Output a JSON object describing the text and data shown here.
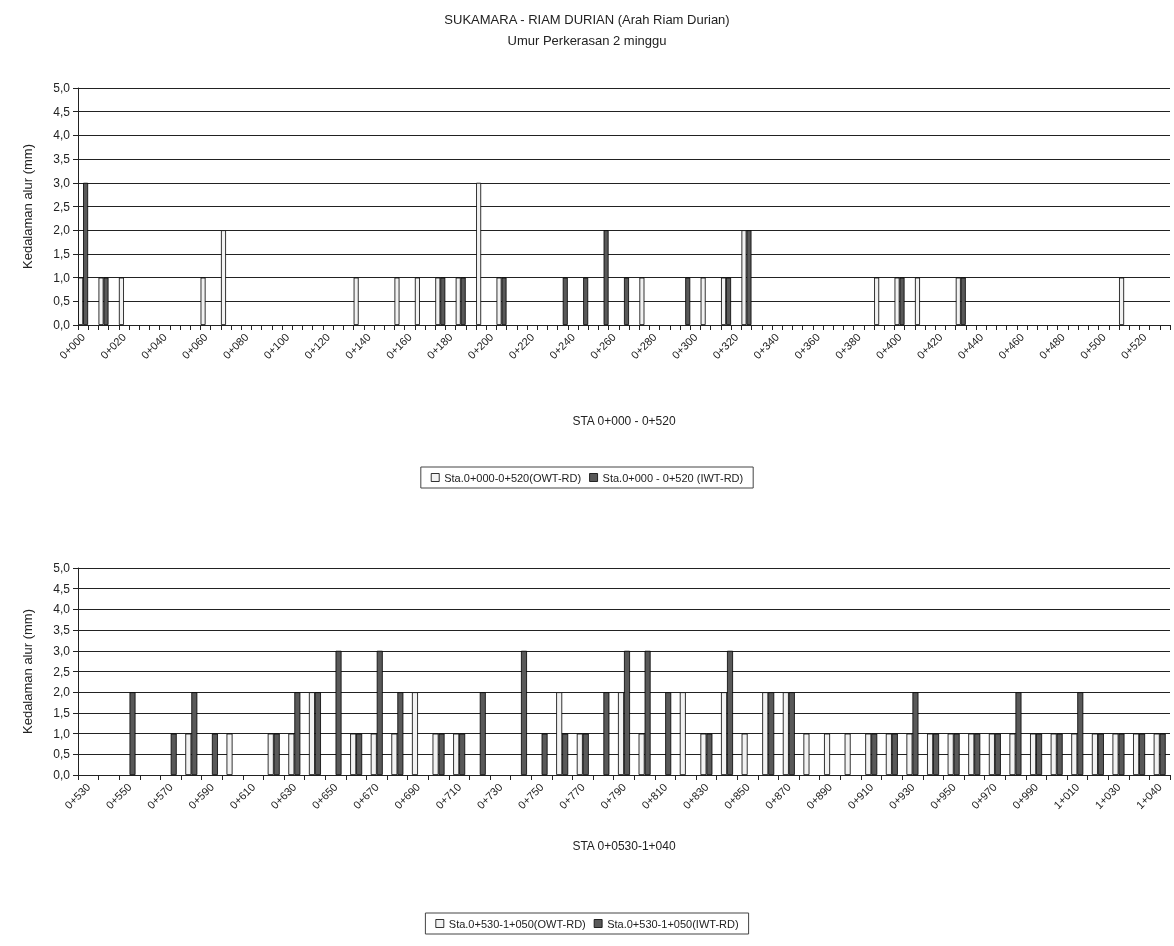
{
  "chart_data": [
    {
      "type": "bar",
      "title": "SUKAMARA - RIAM DURIAN (Arah Riam Durian)",
      "subtitle": "Umur Perkerasan 2 minggu",
      "xlabel": "STA 0+000 - 0+520",
      "ylabel": "Kedalaman alur (mm)",
      "categories": [
        "0+000",
        null,
        null,
        null,
        "0+020",
        null,
        null,
        null,
        "0+040",
        null,
        null,
        null,
        "0+060",
        null,
        null,
        null,
        "0+080",
        null,
        null,
        null,
        "0+100",
        null,
        null,
        null,
        "0+120",
        null,
        null,
        null,
        "0+140",
        null,
        null,
        null,
        "0+160",
        null,
        null,
        null,
        "0+180",
        null,
        null,
        null,
        "0+200",
        null,
        null,
        null,
        "0+220",
        null,
        null,
        null,
        "0+240",
        null,
        null,
        null,
        "0+260",
        null,
        null,
        null,
        "0+280",
        null,
        null,
        null,
        "0+300",
        null,
        null,
        null,
        "0+320",
        null,
        null,
        null,
        "0+340",
        null,
        null,
        null,
        "0+360",
        null,
        null,
        null,
        "0+380",
        null,
        null,
        null,
        "0+400",
        null,
        null,
        null,
        "0+420",
        null,
        null,
        null,
        "0+440",
        null,
        null,
        null,
        "0+460",
        null,
        null,
        null,
        "0+480",
        null,
        null,
        null,
        "0+500",
        null,
        null,
        null,
        "0+520",
        null,
        null
      ],
      "series": [
        {
          "name": "Sta.0+000-0+520(OWT-RD)",
          "color": "#f2f2f2",
          "values": [
            1,
            null,
            1,
            null,
            1,
            null,
            null,
            null,
            null,
            null,
            null,
            null,
            1,
            null,
            2,
            null,
            null,
            null,
            null,
            null,
            null,
            null,
            null,
            null,
            null,
            null,
            null,
            1,
            null,
            null,
            null,
            1,
            null,
            1,
            null,
            1,
            null,
            1,
            null,
            3,
            null,
            1,
            null,
            null,
            null,
            null,
            null,
            null,
            null,
            null,
            null,
            null,
            null,
            null,
            null,
            1,
            null,
            null,
            null,
            null,
            null,
            1,
            null,
            1,
            null,
            2,
            null,
            null,
            null,
            null,
            null,
            null,
            null,
            null,
            null,
            null,
            null,
            null,
            1,
            null,
            1,
            null,
            1,
            null,
            null,
            null,
            1,
            null,
            null,
            null,
            null,
            null,
            null,
            null,
            null,
            null,
            null,
            null,
            null,
            null,
            null,
            null,
            1,
            null,
            null,
            null,
            null
          ]
        },
        {
          "name": "Sta.0+000 - 0+520 (IWT-RD)",
          "color": "#595959",
          "values": [
            3,
            null,
            1,
            null,
            null,
            null,
            null,
            null,
            null,
            null,
            null,
            null,
            null,
            null,
            null,
            null,
            null,
            null,
            null,
            null,
            null,
            null,
            null,
            null,
            null,
            null,
            null,
            null,
            null,
            null,
            null,
            null,
            null,
            null,
            null,
            1,
            null,
            1,
            null,
            null,
            null,
            1,
            null,
            null,
            null,
            null,
            null,
            1,
            null,
            1,
            null,
            2,
            null,
            1,
            null,
            null,
            null,
            null,
            null,
            1,
            null,
            null,
            null,
            1,
            null,
            2,
            null,
            null,
            null,
            null,
            null,
            null,
            null,
            null,
            null,
            null,
            null,
            null,
            null,
            null,
            1,
            null,
            null,
            null,
            null,
            null,
            1,
            null,
            null,
            null,
            null,
            null,
            null,
            null,
            null,
            null,
            null,
            null,
            null,
            null,
            null,
            null,
            null,
            null,
            null,
            null,
            null
          ]
        }
      ],
      "ylim": [
        0,
        5
      ],
      "yticks": [
        {
          "value": 0,
          "label": "0,0"
        },
        {
          "value": 0.5,
          "label": "0,5"
        },
        {
          "value": 1,
          "label": "1,0"
        },
        {
          "value": 1.5,
          "label": "1,5"
        },
        {
          "value": 2,
          "label": "2,0"
        },
        {
          "value": 2.5,
          "label": "2,5"
        },
        {
          "value": 3,
          "label": "3,0"
        },
        {
          "value": 3.5,
          "label": "3,5"
        },
        {
          "value": 4,
          "label": "4,0"
        },
        {
          "value": 4.5,
          "label": "4,5"
        },
        {
          "value": 5,
          "label": "5,0"
        }
      ],
      "grid": "y",
      "legend": "bottom"
    },
    {
      "type": "bar",
      "xlabel": "STA 0+0530-1+040",
      "ylabel": "Kedalaman alur (mm)",
      "categories": [
        "0+530",
        null,
        "0+550",
        null,
        "0+570",
        null,
        "0+590",
        null,
        "0+610",
        null,
        "0+630",
        null,
        "0+650",
        null,
        "0+670",
        null,
        "0+690",
        null,
        "0+710",
        null,
        "0+730",
        null,
        "0+750",
        null,
        "0+770",
        null,
        "0+790",
        null,
        "0+810",
        null,
        "0+830",
        null,
        "0+850",
        null,
        "0+870",
        null,
        "0+890",
        null,
        "0+910",
        null,
        "0+930",
        null,
        "0+950",
        null,
        "0+970",
        null,
        "0+990",
        null,
        "1+010",
        null,
        "1+030",
        null,
        "1+040"
      ],
      "series": [
        {
          "name": "Sta.0+530-1+050(OWT-RD)",
          "color": "#f2f2f2",
          "values": [
            null,
            null,
            null,
            null,
            null,
            1,
            null,
            1,
            null,
            1,
            1,
            2,
            null,
            1,
            1,
            1,
            2,
            1,
            1,
            null,
            null,
            null,
            null,
            2,
            1,
            null,
            2,
            1,
            null,
            2,
            1,
            2,
            1,
            2,
            2,
            1,
            1,
            1,
            1,
            1,
            1,
            1,
            1,
            1,
            1,
            1,
            1,
            1,
            1,
            1,
            1,
            1,
            1
          ]
        },
        {
          "name": "Sta.0+530-1+050(IWT-RD)",
          "color": "#595959",
          "values": [
            null,
            null,
            2,
            null,
            1,
            2,
            1,
            null,
            null,
            1,
            2,
            2,
            3,
            1,
            3,
            2,
            null,
            1,
            1,
            2,
            null,
            3,
            1,
            1,
            1,
            2,
            3,
            3,
            2,
            null,
            1,
            3,
            null,
            2,
            2,
            null,
            null,
            null,
            1,
            1,
            2,
            1,
            1,
            1,
            1,
            2,
            1,
            1,
            2,
            1,
            1,
            1,
            1
          ]
        }
      ],
      "ylim": [
        0,
        5
      ],
      "yticks": [
        {
          "value": 0,
          "label": "0,0"
        },
        {
          "value": 0.5,
          "label": "0,5"
        },
        {
          "value": 1,
          "label": "1,0"
        },
        {
          "value": 1.5,
          "label": "1,5"
        },
        {
          "value": 2,
          "label": "2,0"
        },
        {
          "value": 2.5,
          "label": "2,5"
        },
        {
          "value": 3,
          "label": "3,0"
        },
        {
          "value": 3.5,
          "label": "3,5"
        },
        {
          "value": 4,
          "label": "4,0"
        },
        {
          "value": 4.5,
          "label": "4,5"
        },
        {
          "value": 5,
          "label": "5,0"
        }
      ],
      "grid": "y",
      "legend": "bottom"
    }
  ]
}
